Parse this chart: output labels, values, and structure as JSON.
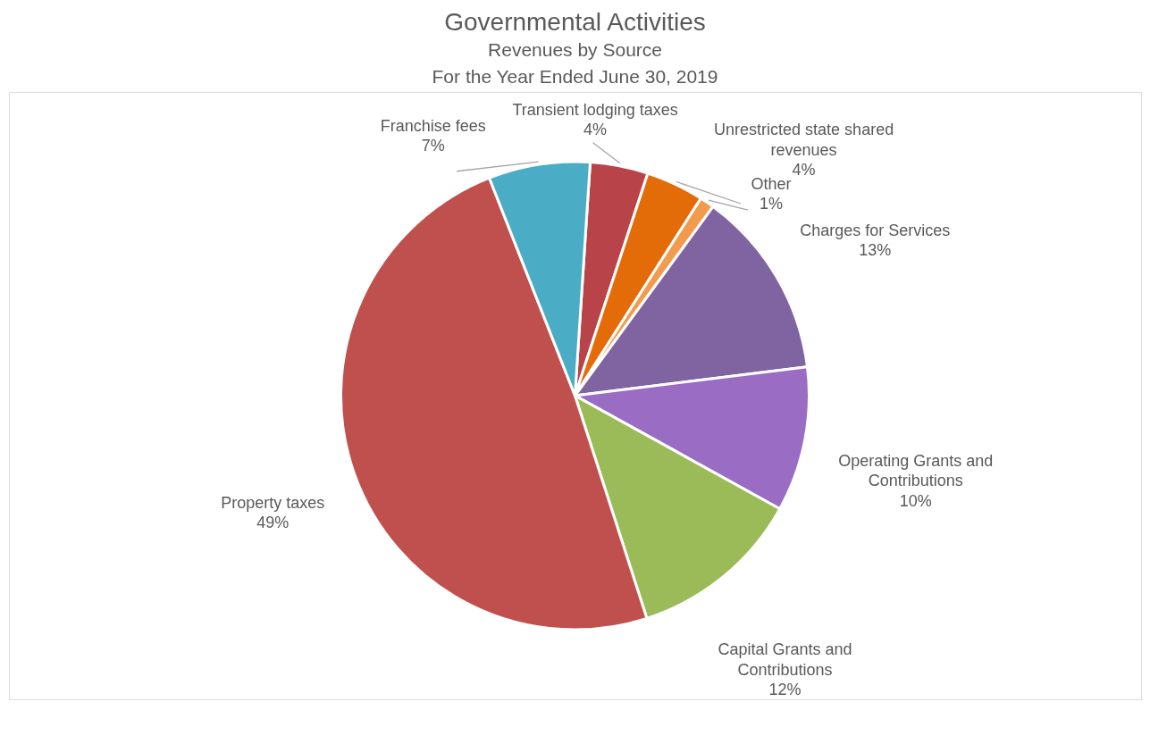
{
  "chart_data": {
    "type": "pie",
    "title": "Governmental Activities",
    "subtitle": "Revenues by Source\nFor the Year Ended June 30, 2019",
    "categories": [
      "Transient lodging taxes",
      "Unrestricted state shared revenues",
      "Other",
      "Charges for Services",
      "Operating Grants and Contributions",
      "Capital Grants and Contributions",
      "Property taxes",
      "Franchise fees"
    ],
    "values": [
      4,
      4,
      1,
      13,
      10,
      12,
      49,
      7
    ],
    "value_labels": [
      "4%",
      "4%",
      "1%",
      "13%",
      "10%",
      "12%",
      "49%",
      "7%"
    ],
    "colors": [
      "#b8444a",
      "#e36c09",
      "#f29b4e",
      "#8064a2",
      "#9a6cc4",
      "#9bbb59",
      "#c0504d",
      "#4bacc6"
    ],
    "legend": false
  }
}
